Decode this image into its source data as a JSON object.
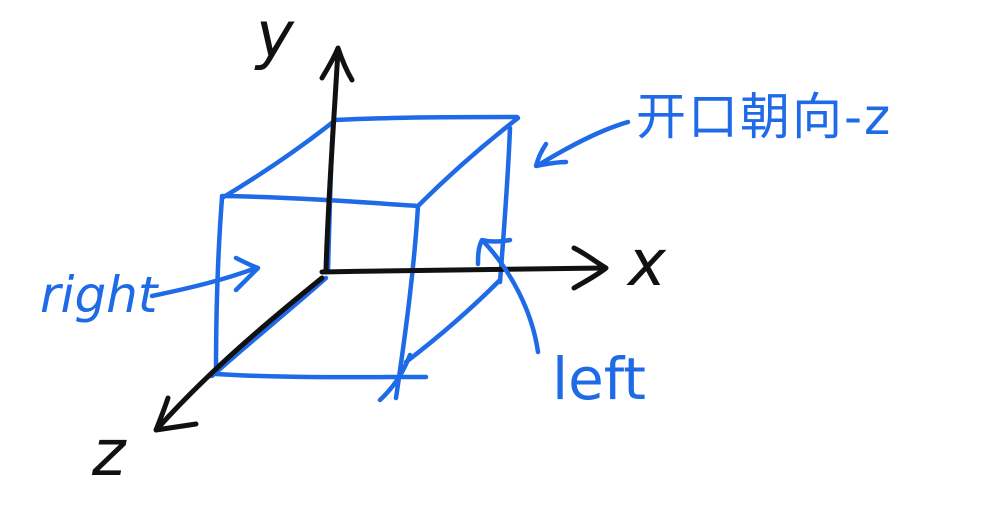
{
  "axes": {
    "x_label": "x",
    "y_label": "y",
    "z_label": "z"
  },
  "annotations": {
    "right_label": "right",
    "left_label": "left",
    "top_label": "开口朝向-z"
  },
  "colors": {
    "axis_ink": "#111111",
    "cube_ink": "#1f6ae6",
    "background": "#ffffff"
  }
}
